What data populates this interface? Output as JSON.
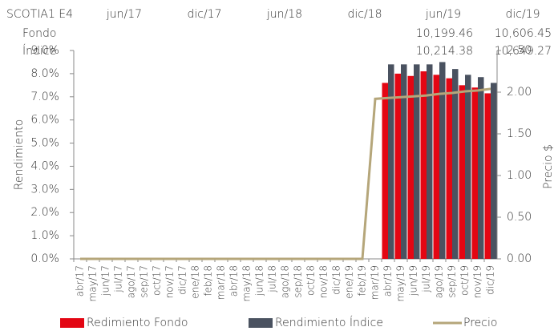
{
  "header": {
    "title": "SCOTIA1 E4",
    "columns": [
      "jun/17",
      "dic/17",
      "jun/18",
      "dic/18",
      "jun/19",
      "dic/19"
    ],
    "rows": [
      {
        "label": "Fondo",
        "values": [
          "10,199.46",
          "10,606.45"
        ]
      },
      {
        "label": "Índice",
        "values": [
          "10,214.38",
          "10,649.27"
        ]
      }
    ]
  },
  "chart_data": {
    "type": "bar",
    "y_label": "Rendimiento",
    "y2_label": "Precio $",
    "categories": [
      "abr/17",
      "may/17",
      "jun/17",
      "jul/17",
      "ago/17",
      "sep/17",
      "oct/17",
      "nov/17",
      "dic/17",
      "ene/18",
      "feb/18",
      "mar/18",
      "abr/18",
      "may/18",
      "jun/18",
      "jul/18",
      "ago/18",
      "sep/18",
      "oct/18",
      "nov/18",
      "dic/18",
      "ene/19",
      "feb/19",
      "mar/19",
      "abr/19",
      "may/19",
      "jun/19",
      "jul/19",
      "ago/19",
      "sep/19",
      "oct/19",
      "nov/19",
      "dic/19"
    ],
    "series": [
      {
        "name": "Redimiento Fondo",
        "type": "bar",
        "color": "#e30613",
        "values": [
          null,
          null,
          null,
          null,
          null,
          null,
          null,
          null,
          null,
          null,
          null,
          null,
          null,
          null,
          null,
          null,
          null,
          null,
          null,
          null,
          null,
          null,
          null,
          null,
          7.6,
          8.0,
          7.9,
          8.1,
          7.95,
          7.8,
          7.5,
          7.4,
          7.15
        ]
      },
      {
        "name": "Rendimiento Índice",
        "type": "bar",
        "color": "#4a5260",
        "values": [
          null,
          null,
          null,
          null,
          null,
          null,
          null,
          null,
          null,
          null,
          null,
          null,
          null,
          null,
          null,
          null,
          null,
          null,
          null,
          null,
          null,
          null,
          null,
          null,
          8.4,
          8.4,
          8.4,
          8.4,
          8.5,
          8.2,
          7.95,
          7.85,
          7.6
        ]
      },
      {
        "name": "Precio",
        "type": "line",
        "axis": "y2",
        "color": "#b5a67a",
        "values": [
          0,
          0,
          0,
          0,
          0,
          0,
          0,
          0,
          0,
          0,
          0,
          0,
          0,
          0,
          0,
          0,
          0,
          0,
          0,
          0,
          0,
          0,
          0,
          1.92,
          1.93,
          1.94,
          1.95,
          1.96,
          1.98,
          1.99,
          2.01,
          2.02,
          2.04
        ]
      }
    ],
    "ylim": [
      0,
      9
    ],
    "yticks": [
      {
        "value": 0,
        "label": "0.0%"
      },
      {
        "value": 1,
        "label": "1.0%"
      },
      {
        "value": 2,
        "label": "2.0%"
      },
      {
        "value": 3,
        "label": "3.0%"
      },
      {
        "value": 4,
        "label": "4.0%"
      },
      {
        "value": 5,
        "label": "5.0%"
      },
      {
        "value": 6,
        "label": "6.0%"
      },
      {
        "value": 7,
        "label": "7.0%"
      },
      {
        "value": 8,
        "label": "8.0%"
      },
      {
        "value": 9,
        "label": "9.0%"
      }
    ],
    "y2lim": [
      0,
      2.5
    ],
    "y2ticks": [
      {
        "value": 0,
        "label": "0.00"
      },
      {
        "value": 0.5,
        "label": "0.50"
      },
      {
        "value": 1,
        "label": "1.00"
      },
      {
        "value": 1.5,
        "label": "1.50"
      },
      {
        "value": 2,
        "label": "2.00"
      },
      {
        "value": 2.5,
        "label": "2.50"
      }
    ],
    "legend": "bottom"
  }
}
